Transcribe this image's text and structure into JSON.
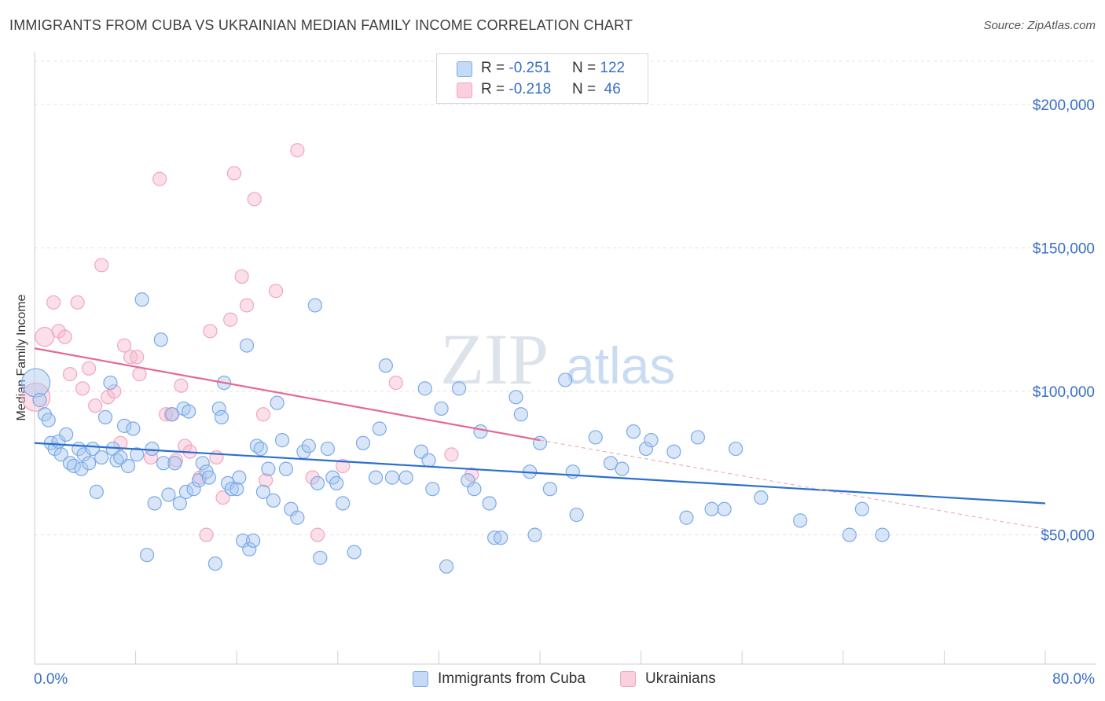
{
  "title": "IMMIGRANTS FROM CUBA VS UKRAINIAN MEDIAN FAMILY INCOME CORRELATION CHART",
  "source": "Source: ZipAtlas.com",
  "watermark": {
    "zip": "ZIP",
    "atlas": "atlas"
  },
  "legend_stats": [
    {
      "r_label": "R = ",
      "r_value": "-0.251",
      "n_label": "N = ",
      "n_value": "122"
    },
    {
      "r_label": "R = ",
      "r_value": "-0.218",
      "n_label": "N = ",
      "n_value": " 46"
    }
  ],
  "legend_bottom": [
    "Immigrants from Cuba",
    "Ukrainians"
  ],
  "chart_data": {
    "type": "scatter",
    "title": "IMMIGRANTS FROM CUBA VS UKRAINIAN MEDIAN FAMILY INCOME CORRELATION CHART",
    "xlabel": "",
    "ylabel": "Median Family Income",
    "xlim": [
      0,
      80
    ],
    "ylim": [
      5000,
      215000
    ],
    "x_tick_labels": [
      "0.0%",
      "80.0%"
    ],
    "y_ticks": [
      50000,
      100000,
      150000,
      200000
    ],
    "y_tick_labels": [
      "$50,000",
      "$100,000",
      "$150,000",
      "$200,000"
    ],
    "grid": true,
    "legend_position": "top-center",
    "colors": {
      "cuba": "#7aaae8",
      "cuba_line": "#2b6fd1",
      "ukr": "#f2a6bf",
      "ukr_line": "#e56a93",
      "axis_text": "#3a6fc4"
    },
    "series": [
      {
        "name": "Immigrants from Cuba",
        "r": -0.251,
        "n": 122,
        "trend": {
          "x": [
            0,
            80
          ],
          "y": [
            82000,
            61000
          ]
        },
        "points": [
          [
            0.1,
            103000
          ],
          [
            0.4,
            97000
          ],
          [
            0.8,
            92000
          ],
          [
            1.1,
            90000
          ],
          [
            1.3,
            82000
          ],
          [
            1.6,
            80000
          ],
          [
            1.9,
            82500
          ],
          [
            2.1,
            78000
          ],
          [
            2.5,
            85000
          ],
          [
            2.8,
            75000
          ],
          [
            3.1,
            74000
          ],
          [
            3.5,
            80000
          ],
          [
            3.7,
            73000
          ],
          [
            3.9,
            78000
          ],
          [
            4.3,
            75000
          ],
          [
            4.6,
            80000
          ],
          [
            4.9,
            65000
          ],
          [
            5.3,
            77000
          ],
          [
            5.6,
            91000
          ],
          [
            6.0,
            103000
          ],
          [
            6.2,
            80000
          ],
          [
            6.5,
            76000
          ],
          [
            6.8,
            77000
          ],
          [
            7.1,
            88000
          ],
          [
            7.4,
            74000
          ],
          [
            7.8,
            87000
          ],
          [
            8.1,
            78000
          ],
          [
            8.5,
            132000
          ],
          [
            8.9,
            43000
          ],
          [
            9.3,
            80000
          ],
          [
            9.5,
            61000
          ],
          [
            10.0,
            118000
          ],
          [
            10.2,
            75000
          ],
          [
            10.6,
            64000
          ],
          [
            10.9,
            92000
          ],
          [
            11.1,
            75000
          ],
          [
            11.5,
            61000
          ],
          [
            11.8,
            94000
          ],
          [
            12.0,
            65000
          ],
          [
            12.2,
            93000
          ],
          [
            12.6,
            66000
          ],
          [
            13.0,
            69000
          ],
          [
            13.3,
            75000
          ],
          [
            13.6,
            72000
          ],
          [
            13.8,
            70000
          ],
          [
            14.3,
            40000
          ],
          [
            14.6,
            94000
          ],
          [
            14.8,
            91000
          ],
          [
            15.0,
            103000
          ],
          [
            15.3,
            68000
          ],
          [
            15.6,
            66000
          ],
          [
            16.0,
            66000
          ],
          [
            16.2,
            70000
          ],
          [
            16.5,
            48000
          ],
          [
            16.8,
            116000
          ],
          [
            17.0,
            45000
          ],
          [
            17.3,
            48000
          ],
          [
            17.6,
            81000
          ],
          [
            17.9,
            80000
          ],
          [
            18.1,
            65000
          ],
          [
            18.5,
            73000
          ],
          [
            18.9,
            62000
          ],
          [
            19.2,
            96000
          ],
          [
            19.6,
            83000
          ],
          [
            19.9,
            73000
          ],
          [
            20.3,
            59000
          ],
          [
            20.8,
            56000
          ],
          [
            21.3,
            79000
          ],
          [
            21.7,
            81000
          ],
          [
            22.2,
            130000
          ],
          [
            22.4,
            68000
          ],
          [
            22.6,
            42000
          ],
          [
            23.2,
            80000
          ],
          [
            23.6,
            70000
          ],
          [
            23.9,
            68000
          ],
          [
            24.4,
            61000
          ],
          [
            25.3,
            44000
          ],
          [
            26.0,
            82000
          ],
          [
            27.0,
            70000
          ],
          [
            27.3,
            87000
          ],
          [
            27.8,
            109000
          ],
          [
            28.3,
            70000
          ],
          [
            29.4,
            70000
          ],
          [
            30.6,
            79000
          ],
          [
            30.9,
            101000
          ],
          [
            31.2,
            76000
          ],
          [
            31.5,
            66000
          ],
          [
            32.2,
            94000
          ],
          [
            32.6,
            39000
          ],
          [
            33.6,
            101000
          ],
          [
            34.3,
            69000
          ],
          [
            34.8,
            66000
          ],
          [
            35.3,
            86000
          ],
          [
            36.0,
            61000
          ],
          [
            36.4,
            49000
          ],
          [
            36.9,
            49000
          ],
          [
            38.1,
            98000
          ],
          [
            38.5,
            92000
          ],
          [
            39.2,
            72000
          ],
          [
            39.6,
            50000
          ],
          [
            40.0,
            82000
          ],
          [
            40.8,
            66000
          ],
          [
            42.0,
            104000
          ],
          [
            42.6,
            72000
          ],
          [
            42.9,
            57000
          ],
          [
            44.4,
            84000
          ],
          [
            45.6,
            75000
          ],
          [
            46.5,
            73000
          ],
          [
            47.4,
            86000
          ],
          [
            48.4,
            80000
          ],
          [
            48.8,
            83000
          ],
          [
            50.6,
            79000
          ],
          [
            51.6,
            56000
          ],
          [
            52.5,
            84000
          ],
          [
            53.6,
            59000
          ],
          [
            54.6,
            59000
          ],
          [
            55.5,
            80000
          ],
          [
            57.5,
            63000
          ],
          [
            60.6,
            55000
          ],
          [
            64.5,
            50000
          ],
          [
            65.5,
            59000
          ],
          [
            67.1,
            50000
          ]
        ]
      },
      {
        "name": "Ukrainians",
        "r": -0.218,
        "n": 46,
        "trend": {
          "x": [
            0,
            40
          ],
          "y": [
            115000,
            83000
          ]
        },
        "trend_ext": {
          "x": [
            40,
            80
          ],
          "y": [
            83000,
            52000
          ]
        },
        "points": [
          [
            0.1,
            98000
          ],
          [
            0.8,
            119000
          ],
          [
            1.5,
            131000
          ],
          [
            1.9,
            121000
          ],
          [
            2.4,
            119000
          ],
          [
            2.8,
            106000
          ],
          [
            3.4,
            131000
          ],
          [
            3.8,
            101000
          ],
          [
            4.3,
            108000
          ],
          [
            4.8,
            95000
          ],
          [
            5.3,
            144000
          ],
          [
            5.8,
            98000
          ],
          [
            6.3,
            100000
          ],
          [
            6.8,
            82000
          ],
          [
            7.1,
            116000
          ],
          [
            7.6,
            112000
          ],
          [
            8.1,
            112000
          ],
          [
            8.3,
            106000
          ],
          [
            9.2,
            77000
          ],
          [
            9.9,
            174000
          ],
          [
            10.4,
            92000
          ],
          [
            10.8,
            92000
          ],
          [
            11.2,
            76000
          ],
          [
            11.6,
            102000
          ],
          [
            11.9,
            81000
          ],
          [
            12.3,
            79000
          ],
          [
            13.1,
            70000
          ],
          [
            13.6,
            50000
          ],
          [
            13.9,
            121000
          ],
          [
            14.4,
            77000
          ],
          [
            14.9,
            63000
          ],
          [
            15.5,
            125000
          ],
          [
            15.8,
            176000
          ],
          [
            16.4,
            140000
          ],
          [
            16.8,
            130000
          ],
          [
            17.4,
            167000
          ],
          [
            18.1,
            92000
          ],
          [
            18.3,
            69000
          ],
          [
            19.1,
            135000
          ],
          [
            20.8,
            184000
          ],
          [
            22.0,
            70000
          ],
          [
            22.4,
            50000
          ],
          [
            24.4,
            74000
          ],
          [
            28.6,
            103000
          ],
          [
            33.0,
            78000
          ],
          [
            34.6,
            71000
          ]
        ]
      }
    ]
  }
}
